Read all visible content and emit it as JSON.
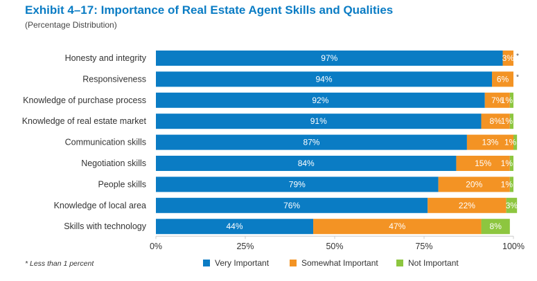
{
  "chart_data": {
    "type": "bar",
    "orientation": "horizontal",
    "stacked": true,
    "title": "Exhibit 4–17:  Importance of Real Estate Agent Skills and Qualities",
    "subtitle": "(Percentage Distribution)",
    "categories": [
      "Honesty and integrity",
      "Responsiveness",
      "Knowledge of purchase process",
      "Knowledge of real estate market",
      "Communication skills",
      "Negotiation skills",
      "People skills",
      "Knowledge of local area",
      "Skills with technology"
    ],
    "series": [
      {
        "name": "Very Important",
        "color": "#0a7cc4",
        "values": [
          97,
          94,
          92,
          91,
          87,
          84,
          79,
          76,
          44
        ]
      },
      {
        "name": "Somewhat Important",
        "color": "#f39324",
        "values": [
          3,
          6,
          7,
          8,
          13,
          15,
          20,
          22,
          47
        ]
      },
      {
        "name": "Not Important",
        "color": "#8dc63f",
        "values": [
          null,
          null,
          1,
          1,
          1,
          1,
          1,
          3,
          8
        ]
      }
    ],
    "not_important_markers": [
      "*",
      "*",
      null,
      null,
      null,
      null,
      null,
      null,
      null
    ],
    "xlim": [
      0,
      100
    ],
    "xticks": [
      "0%",
      "25%",
      "50%",
      "75%",
      "100%"
    ],
    "grid": false,
    "legend_position": "bottom",
    "footnote": "* Less than 1 percent"
  }
}
